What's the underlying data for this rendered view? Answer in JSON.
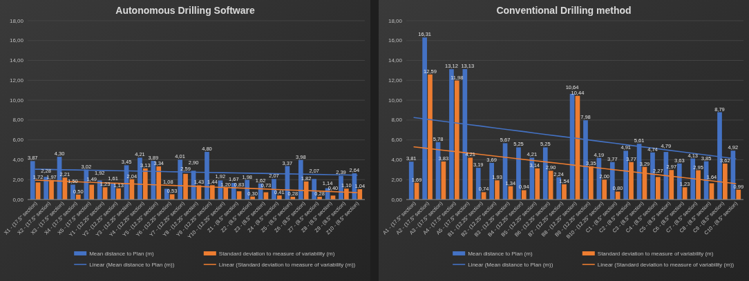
{
  "chart_data": [
    {
      "type": "bar",
      "title": "Autonomous Drilling Software",
      "categories": [
        "X1 - (17.5\" section)",
        "X2 - (17.5\" section)",
        "X3 - (17.5\" section)",
        "X4 - (17.5\" section)",
        "X5 - (17.5\" section)",
        "Y1 - (12.25\" section)",
        "Y2 - (12.25\" section)",
        "Y3 - (12.25\" section)",
        "Y4 - (12.25\" section)",
        "Y5 - (12.25\" section)",
        "Y6 - (12.25\" section)",
        "Y7 - (12.25\" section)",
        "Y8 - (12.25\" section)",
        "Y9 - (12.25\" section)",
        "Y10 - (12.25\" section)",
        "Z1 - (8.5\" section)",
        "Z2 - (8.5\" section)",
        "Z3 - (8.5\" section)",
        "Z4 - (8.5\" section)",
        "Z5 - (8.5\" section)",
        "Z6 - (8.5\" section)",
        "Z7 - (8.5\" section)",
        "Z8 - (8.5\" section)",
        "Z9 - (8.5\" section)",
        "Z10 - (8.5\" section)"
      ],
      "series": [
        {
          "name": "Mean distance to Plan (m)",
          "color": "#4472c4",
          "values": [
            3.87,
            2.28,
            4.3,
            1.5,
            3.02,
            1.92,
            1.61,
            3.45,
            4.21,
            3.89,
            1.08,
            4.01,
            2.9,
            4.8,
            1.92,
            1.67,
            1.98,
            1.62,
            2.07,
            3.37,
            3.98,
            2.07,
            1.14,
            2.39,
            2.64
          ],
          "value_labels": [
            "3,87",
            "2,28",
            "4,30",
            "1,50",
            "3,02",
            "1,92",
            "1,61",
            "3,45",
            "4,21",
            "3,89",
            "1,08",
            "4,01",
            "2,90",
            "4,80",
            "1,92",
            "1,67",
            "1,98",
            "1,62",
            "2,07",
            "3,37",
            "3,98",
            "2,07",
            "1,14",
            "2,39",
            "2,64"
          ]
        },
        {
          "name": "Standard deviation to measure of variability (m)",
          "color": "#ed7d31",
          "values": [
            1.72,
            1.97,
            2.21,
            0.5,
            1.49,
            1.23,
            1.13,
            2.04,
            3.13,
            3.34,
            0.53,
            2.59,
            1.43,
            1.44,
            1.2,
            0.83,
            0.3,
            0.73,
            0.41,
            0.28,
            1.82,
            0.28,
            0.4,
            1.1,
            1.04
          ],
          "value_labels": [
            "1,72",
            "1,97",
            "2,21",
            "0,50",
            "1,49",
            "1,23",
            "1,13",
            "2,04",
            "3,13",
            "3,34",
            "0,53",
            "2,59",
            "1,43",
            "1,44",
            "1,20",
            "0,83",
            "0,30",
            "0,73",
            "0,41",
            "0,28",
            "1,82",
            "0,28",
            "0,40",
            "1,10",
            "1,04"
          ]
        },
        {
          "name": "Linear (Mean distance to Plan (m))",
          "type": "line",
          "color": "#4472c4",
          "values": [
            3.05,
            3.03,
            3.0,
            2.98,
            2.95,
            2.93,
            2.9,
            2.88,
            2.85,
            2.83,
            2.8,
            2.78,
            2.75,
            2.73,
            2.7,
            2.68,
            2.65,
            2.63,
            2.6,
            2.58,
            2.55,
            2.53,
            2.5,
            2.48,
            2.45
          ]
        },
        {
          "name": "Linear (Standard deviation to measure of variability (m))",
          "type": "line",
          "color": "#ed7d31",
          "values": [
            1.95,
            1.9,
            1.85,
            1.79,
            1.74,
            1.69,
            1.64,
            1.59,
            1.53,
            1.48,
            1.43,
            1.38,
            1.33,
            1.27,
            1.22,
            1.17,
            1.12,
            1.07,
            1.01,
            0.96,
            0.91,
            0.86,
            0.81,
            0.75,
            0.7
          ]
        }
      ],
      "ylim": [
        0,
        18
      ],
      "yticks": [
        {
          "value": 0,
          "label": "0,00"
        },
        {
          "value": 2,
          "label": "2,00"
        },
        {
          "value": 4,
          "label": "4,00"
        },
        {
          "value": 6,
          "label": "6,00"
        },
        {
          "value": 8,
          "label": "8,00"
        },
        {
          "value": 10,
          "label": "10,00"
        },
        {
          "value": 12,
          "label": "12,00"
        },
        {
          "value": 14,
          "label": "14,00"
        },
        {
          "value": 16,
          "label": "16,00"
        },
        {
          "value": 18,
          "label": "18,00"
        }
      ],
      "grid": "y",
      "legend": "bottom"
    },
    {
      "type": "bar",
      "title": "Conventional Drilling method",
      "categories": [
        "A1 - (17.5\" section)",
        "A2 - (17.5\" section)",
        "A3 - (17.5\" section)",
        "A4 - (17.5\" section)",
        "A5 - (17.5\" section)",
        "B1 - (12.25\" section)",
        "B2 - (12.25\" section)",
        "B3 - (12.25\" section)",
        "B4 - (12.25\" section)",
        "B5 - (12.25\" section)",
        "B6 - (12.25\" section)",
        "B7 - (12.25\" section)",
        "B8 - (12.25\" section)",
        "B9 - (12.25\" section)",
        "B10 - (12.25\" section)",
        "C1 - (8.5\" section)",
        "C2 - (8.5\" section)",
        "C3 - (8.5\" section)",
        "C4 - (8.5\" section)",
        "C5 - (8.5\" section)",
        "C6 - (8.5\" section)",
        "C7 - (8.5\" section)",
        "C8 - (8.5\" section)",
        "C9 - (8.5\" section)",
        "C10 - (8.5\" section)"
      ],
      "series": [
        {
          "name": "Mean distance to Plan (m)",
          "color": "#4472c4",
          "values": [
            3.81,
            16.31,
            5.78,
            13.12,
            13.13,
            3.19,
            3.69,
            5.67,
            5.25,
            4.21,
            5.25,
            2.24,
            10.64,
            7.98,
            4.19,
            3.77,
            4.91,
            5.61,
            4.74,
            4.79,
            3.63,
            4.13,
            3.85,
            8.79,
            4.92
          ],
          "value_labels": [
            "3,81",
            "16,31",
            "5,78",
            "13,12",
            "13,13",
            "3,19",
            "3,69",
            "5,67",
            "5,25",
            "4,21",
            "5,25",
            "2,24",
            "10,64",
            "7,98",
            "4,19",
            "3,77",
            "4,91",
            "5,61",
            "4,74",
            "4,79",
            "3,63",
            "4,13",
            "3,85",
            "8,79",
            "4,92"
          ]
        },
        {
          "name": "Standard deviation to measure of variability (m)",
          "color": "#ed7d31",
          "values": [
            1.69,
            12.59,
            3.83,
            11.98,
            4.21,
            0.74,
            1.93,
            1.34,
            0.94,
            3.14,
            2.9,
            1.54,
            10.44,
            3.35,
            2.0,
            0.8,
            3.77,
            3.29,
            2.27,
            2.97,
            1.23,
            2.95,
            1.64,
            3.62,
            0.99
          ],
          "value_labels": [
            "1,69",
            "12,59",
            "3,83",
            "11,98",
            "4,21",
            "0,74",
            "1,93",
            "1,34",
            "0,94",
            "3,14",
            "2,90",
            "1,54",
            "10,44",
            "3,35",
            "2,00",
            "0,80",
            "3,77",
            "3,29",
            "2,27",
            "2,97",
            "1,23",
            "2,95",
            "1,64",
            "3,62",
            "0,99"
          ]
        },
        {
          "name": "Linear (Mean distance to Plan (m))",
          "type": "line",
          "color": "#4472c4",
          "values": [
            8.25,
            8.08,
            7.9,
            7.73,
            7.56,
            7.39,
            7.21,
            7.04,
            6.87,
            6.69,
            6.52,
            6.35,
            6.18,
            6.0,
            5.83,
            5.66,
            5.48,
            5.31,
            5.14,
            4.96,
            4.79,
            4.62,
            4.45,
            4.27,
            4.1
          ]
        },
        {
          "name": "Linear (Standard deviation to measure of variability (m))",
          "type": "line",
          "color": "#ed7d31",
          "values": [
            5.3,
            5.15,
            4.99,
            4.84,
            4.68,
            4.53,
            4.38,
            4.22,
            4.07,
            3.91,
            3.76,
            3.61,
            3.45,
            3.3,
            3.14,
            2.99,
            2.84,
            2.68,
            2.53,
            2.37,
            2.22,
            2.07,
            1.91,
            1.76,
            1.6
          ]
        }
      ],
      "ylim": [
        0,
        18
      ],
      "yticks": [
        {
          "value": 0,
          "label": "0,00"
        },
        {
          "value": 2,
          "label": "2,00"
        },
        {
          "value": 4,
          "label": "4,00"
        },
        {
          "value": 6,
          "label": "6,00"
        },
        {
          "value": 8,
          "label": "8,00"
        },
        {
          "value": 10,
          "label": "10,00"
        },
        {
          "value": 12,
          "label": "12,00"
        },
        {
          "value": 14,
          "label": "14,00"
        },
        {
          "value": 16,
          "label": "16,00"
        },
        {
          "value": 18,
          "label": "18,00"
        }
      ],
      "grid": "y",
      "legend": "bottom"
    }
  ]
}
